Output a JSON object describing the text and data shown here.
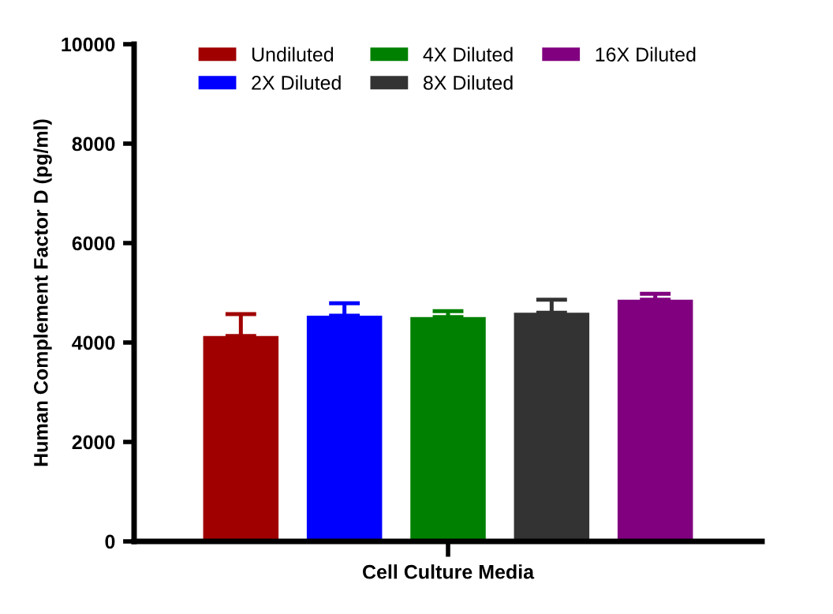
{
  "chart_data": {
    "type": "bar",
    "ylabel": "Human Complement Factor D (pg/ml)",
    "categories": [
      "Cell Culture Media"
    ],
    "series": [
      {
        "name": "Undiluted",
        "color": "#a00000",
        "values": [
          4130
        ],
        "errors": [
          [
            4130,
            4570
          ]
        ]
      },
      {
        "name": "2X Diluted",
        "color": "#0000ff",
        "values": [
          4540
        ],
        "errors": [
          [
            4540,
            4790
          ]
        ]
      },
      {
        "name": "4X Diluted",
        "color": "#008000",
        "values": [
          4510
        ],
        "errors": [
          [
            4510,
            4630
          ]
        ]
      },
      {
        "name": "8X Diluted",
        "color": "#333333",
        "values": [
          4600
        ],
        "errors": [
          [
            4600,
            4860
          ]
        ]
      },
      {
        "name": "16X Diluted",
        "color": "#800080",
        "values": [
          4860
        ],
        "errors": [
          [
            4860,
            4980
          ]
        ]
      }
    ],
    "ylim": [
      0,
      10000
    ],
    "yticks": [
      0,
      2000,
      4000,
      6000,
      8000,
      10000
    ],
    "grid": false,
    "legend": "top"
  }
}
